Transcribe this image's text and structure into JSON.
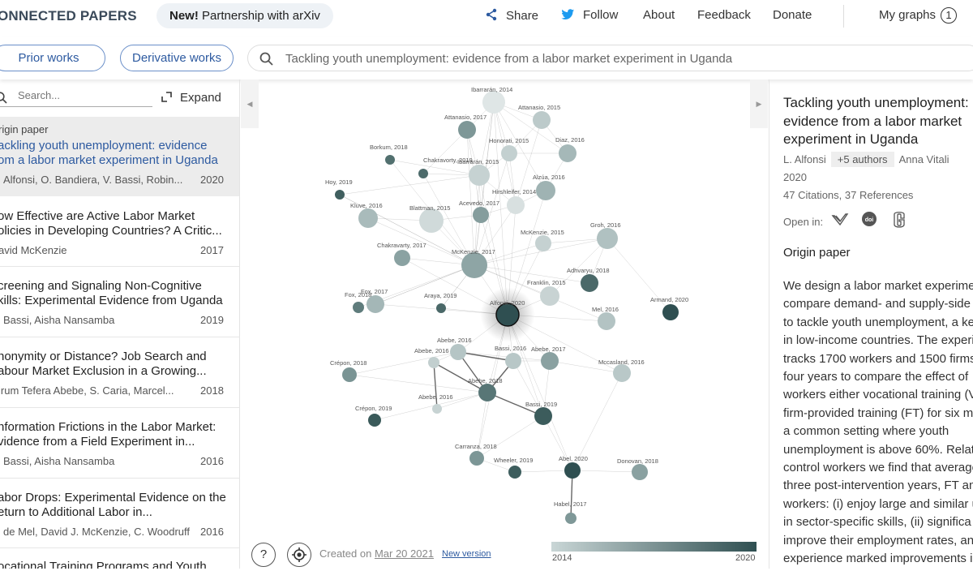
{
  "header": {
    "logo": "ONNECTED PAPERS",
    "news_bold": "New!",
    "news_text": " Partnership with arXiv",
    "nav": {
      "share": "Share",
      "follow": "Follow",
      "about": "About",
      "feedback": "Feedback",
      "donate": "Donate",
      "my_graphs": "My graphs",
      "my_graphs_count": "1"
    }
  },
  "toolbar": {
    "prior_works": "Prior works",
    "derivative_works": "Derivative works",
    "search_value": "Tackling youth unemployment: evidence from a labor market experiment in Uganda"
  },
  "left_panel": {
    "search_placeholder": "Search...",
    "expand": "Expand",
    "origin_label": "rigin paper",
    "origin": {
      "title_1": "ackling youth unemployment: evidence",
      "title_2": "om a labor market experiment in Uganda",
      "authors": "Alfonsi, O. Bandiera, V. Bassi, Robin...",
      "year": "2020"
    },
    "papers": [
      {
        "t1": "ow Effective are Active Labor Market",
        "t2": "olicies in Developing Countries? A Critic...",
        "authors": "avid McKenzie",
        "year": "2017"
      },
      {
        "t1": "creening and Signaling Non-Cognitive",
        "t2": "kills: Experimental Evidence from Uganda",
        "authors": "Bassi, Aisha Nansamba",
        "year": "2019"
      },
      {
        "t1": "nonymity or Distance? Job Search and",
        "t2": "abour Market Exclusion in a Growing...",
        "authors": "irum Tefera Abebe, S. Caria, Marcel...",
        "year": "2018"
      },
      {
        "t1": "nformation Frictions in the Labor Market:",
        "t2": "vidence from a Field Experiment in...",
        "authors": "Bassi, Aisha Nansamba",
        "year": "2016"
      },
      {
        "t1": "abor Drops: Experimental Evidence on the",
        "t2": "eturn to Additional Labor in...",
        "authors": "de Mel, David J. McKenzie, C. Woodruff",
        "year": "2016"
      },
      {
        "t1": "ocational Training Programs and Youth",
        "t2": "",
        "authors": "",
        "year": ""
      }
    ]
  },
  "graph": {
    "nodes": [
      {
        "label": "Ibarrarán, 2014",
        "color": "#dfe6e6"
      },
      {
        "label": "Attanasio, 2015",
        "color": "#bccaca"
      },
      {
        "label": "Attanasio, 2017",
        "color": "#7e9797"
      },
      {
        "label": "Honorati, 2015",
        "color": "#c3d0d0"
      },
      {
        "label": "Diaz, 2016",
        "color": "#a5b8b8"
      },
      {
        "label": "Borkum, 2018",
        "color": "#52706f"
      },
      {
        "label": "Chakravorty, 2019",
        "color": "#4d6b6b"
      },
      {
        "label": "Ibarrarán, 2015",
        "color": "#c6d2d2"
      },
      {
        "label": "Alzúa, 2016",
        "color": "#9fb3b3"
      },
      {
        "label": "Hoy, 2019",
        "color": "#405f5f"
      },
      {
        "label": "Hirshleifer, 2014",
        "color": "#d8e0e0"
      },
      {
        "label": "Kluve, 2016",
        "color": "#a9bbbb"
      },
      {
        "label": "Blattman, 2015",
        "color": "#d0dada"
      },
      {
        "label": "Acevedo, 2017",
        "color": "#859d9d"
      },
      {
        "label": "Groh, 2016",
        "color": "#b0c1c1"
      },
      {
        "label": "McKenzie, 2015",
        "color": "#c5d1d1"
      },
      {
        "label": "Chakravarty, 2017",
        "color": "#8aa2a2"
      },
      {
        "label": "McKenzie, 2017",
        "color": "#8ea5a5"
      },
      {
        "label": "Adhvaryu, 2018",
        "color": "#4b6969"
      },
      {
        "label": "Franklin, 2015",
        "color": "#c8d3d3"
      },
      {
        "label": "Fox, 2018",
        "color": "#5f7c7c"
      },
      {
        "label": "Fox, 2017",
        "color": "#a4b7b7"
      },
      {
        "label": "Araya, 2019",
        "color": "#4a6868"
      },
      {
        "label": "Alfonsi, 2020",
        "color": "#2f4f51"
      },
      {
        "label": "Armand, 2020",
        "color": "#2f4f51"
      },
      {
        "label": "Mel, 2016",
        "color": "#b3c3c3"
      },
      {
        "label": "Abebe, 2016",
        "color": "#b5c5c5"
      },
      {
        "label": "Abebe, 2016",
        "color": "#c2cfcf"
      },
      {
        "label": "Bassi, 2016",
        "color": "#b8c7c7"
      },
      {
        "label": "Abebe, 2017",
        "color": "#8aa1a1"
      },
      {
        "label": "Crépon, 2018",
        "color": "#7a9494"
      },
      {
        "label": "Mccasland, 2016",
        "color": "#b9c8c8"
      },
      {
        "label": "Abebe, 2018",
        "color": "#587676"
      },
      {
        "label": "Abebe, 2016",
        "color": "#c7d3d3"
      },
      {
        "label": "Bassi, 2019",
        "color": "#3c5c5c"
      },
      {
        "label": "Crépon, 2019",
        "color": "#3a5a5a"
      },
      {
        "label": "Carranza, 2018",
        "color": "#7c9696"
      },
      {
        "label": "Wheeler, 2019",
        "color": "#3e5e5e"
      },
      {
        "label": "Abel, 2020",
        "color": "#2f4f51"
      },
      {
        "label": "Donovan, 2018",
        "color": "#8aa1a1"
      },
      {
        "label": "Habel, 2017",
        "color": "#7f9898"
      }
    ],
    "created_prefix": "Created on ",
    "created_date": "Mar 20 2021",
    "new_version": "New version",
    "year_min": "2014",
    "year_max": "2020"
  },
  "right_panel": {
    "title": "Tackling youth unemployment: evidence from a labor market experiment in Uganda",
    "first_author": "L. Alfonsi",
    "more_authors": "+5 authors",
    "last_author": "Anna Vitali",
    "year": "2020",
    "citations": "47 Citations, 37 References",
    "open_in": "Open in:",
    "origin_label": "Origin paper",
    "abstract": "We design a labor market experiment\ncompare demand- and supply-side p\nto tackle youth unemployment, a key\nin low-income countries. The experi\ntracks 1700 workers and 1500 firms\nfour years to compare the effect of\nworkers either vocational training (V\nfirm-provided training (FT) for six m\na common setting where youth\nunemployment is above 60%. Relati\ncontrol workers we find that average\nthree post-intervention years, FT and\nworkers: (i) enjoy large and similar u\nin sector-specific skills, (ii) significa\nimprove their employment rates, and\nexperience marked improvements in"
  },
  "colors": {
    "accent": "#2d5aa0",
    "origin_node": "#2f4f51"
  }
}
